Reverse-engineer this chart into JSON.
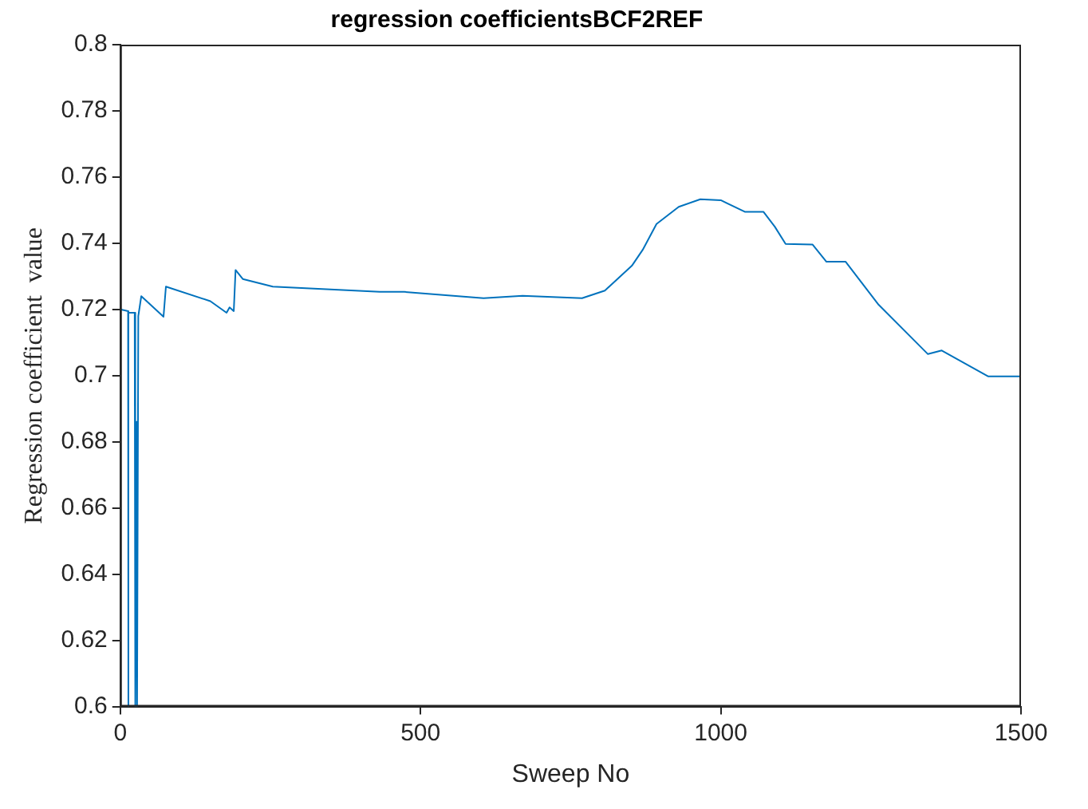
{
  "chart_data": {
    "type": "line",
    "title": "regression coefficientsBCF2REF",
    "xlabel": "Sweep No",
    "ylabel": "Regression coefficient  value",
    "xlim": [
      0,
      1500
    ],
    "xticks": [
      0,
      500,
      1000,
      1500
    ],
    "ylim": [
      0.6,
      0.8
    ],
    "yticks": [
      0.6,
      0.62,
      0.64,
      0.66,
      0.68,
      0.7,
      0.72,
      0.74,
      0.76,
      0.78,
      0.8
    ],
    "marker": "none",
    "line_style": "solid",
    "series": [
      {
        "color": "#0072bd",
        "x": [
          0,
          13,
          13,
          14,
          24,
          25,
          27,
          28,
          30,
          35,
          72,
          76,
          150,
          177,
          182,
          189,
          192,
          204,
          254,
          432,
          473,
          605,
          670,
          769,
          807,
          852,
          870,
          893,
          930,
          966,
          1000,
          1040,
          1071,
          1090,
          1108,
          1153,
          1176,
          1208,
          1263,
          1345,
          1368,
          1445,
          1473,
          1500
        ],
        "values": [
          0.72,
          0.7195,
          0.6,
          0.719,
          0.719,
          0.6,
          0.686,
          0.6,
          0.718,
          0.724,
          0.7178,
          0.7269,
          0.7225,
          0.719,
          0.7206,
          0.7195,
          0.7319,
          0.7292,
          0.7269,
          0.7253,
          0.7253,
          0.7234,
          0.7241,
          0.7234,
          0.7257,
          0.7332,
          0.738,
          0.7458,
          0.751,
          0.7533,
          0.753,
          0.7495,
          0.7495,
          0.745,
          0.7398,
          0.7396,
          0.7344,
          0.7344,
          0.7214,
          0.7065,
          0.7076,
          0.6998,
          0.6998,
          0.6998
        ]
      }
    ]
  }
}
